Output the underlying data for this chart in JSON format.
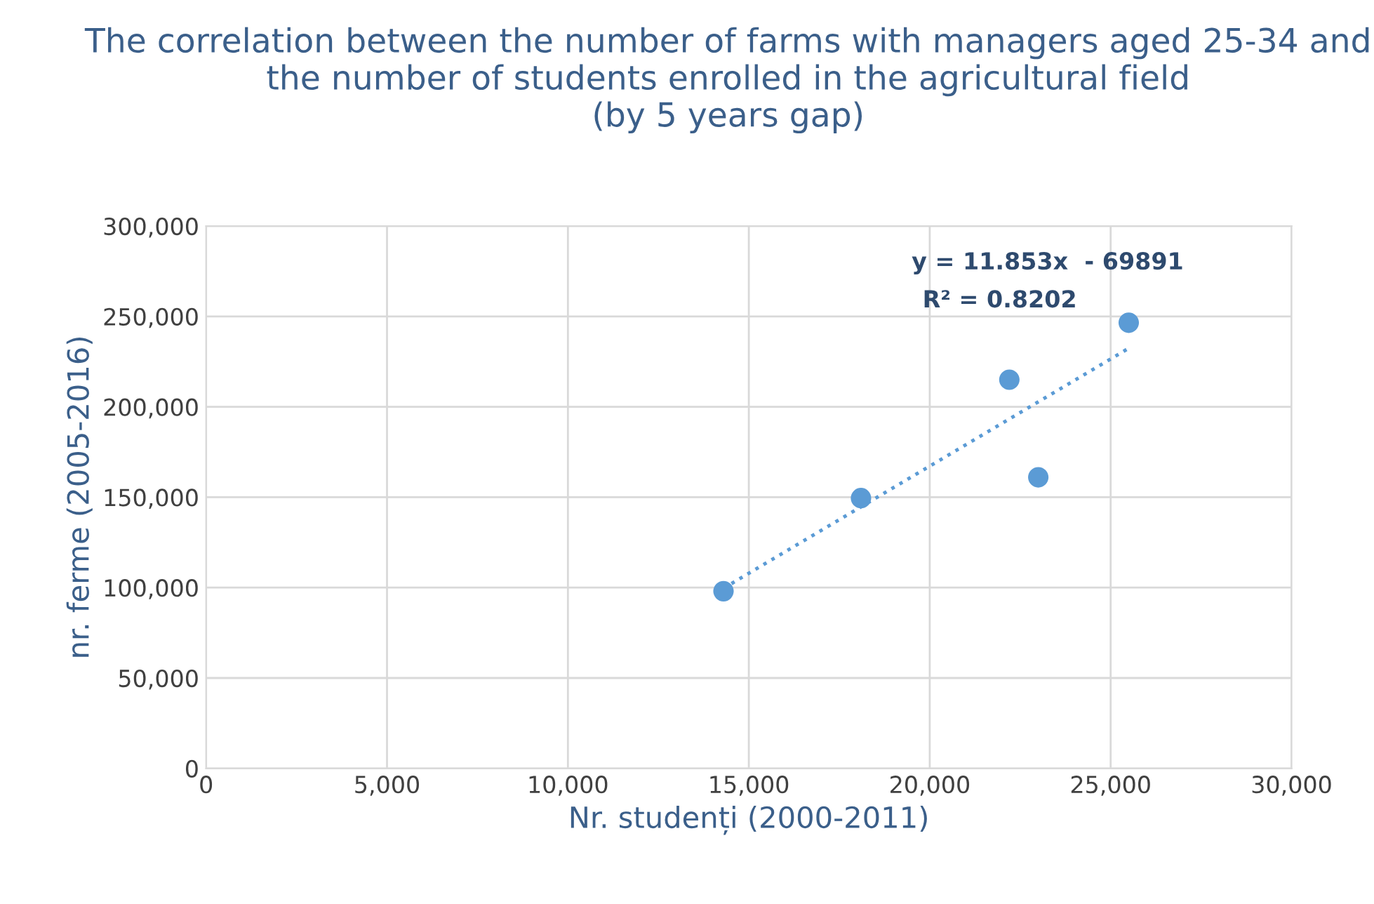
{
  "chart_data": {
    "type": "scatter",
    "title": "The correlation between the number of farms with managers aged 25-34 and the number of students enrolled in the agricultural field\n(by 5 years gap)",
    "xlabel": "Nr. studenți (2000-2011)",
    "ylabel": "nr. ferme (2005-2016)",
    "series": [
      {
        "color": "#5b9bd5",
        "x": [
          14300,
          18100,
          22200,
          23000,
          25500
        ],
        "values": [
          98000,
          149500,
          215000,
          161000,
          246500
        ],
        "marker": "circle"
      },
      {
        "type": "line",
        "color": "#5b9bd5",
        "x": [
          14300,
          25500
        ],
        "values": [
          99600,
          232400
        ],
        "line_style": "dotted",
        "marker": "none"
      }
    ],
    "annotations": [
      "y = 11.853x  - 69891",
      "R² = 0.8202"
    ],
    "xlim": [
      0,
      30000
    ],
    "xticks": [
      {
        "value": 0,
        "label": "0"
      },
      {
        "value": 5000,
        "label": "5,000"
      },
      {
        "value": 10000,
        "label": "10,000"
      },
      {
        "value": 15000,
        "label": "15,000"
      },
      {
        "value": 20000,
        "label": "20,000"
      },
      {
        "value": 25000,
        "label": "25,000"
      },
      {
        "value": 30000,
        "label": "30,000"
      }
    ],
    "ylim": [
      0,
      300000
    ],
    "yticks": [
      {
        "value": 0,
        "label": "0"
      },
      {
        "value": 50000,
        "label": "50,000"
      },
      {
        "value": 100000,
        "label": "100,000"
      },
      {
        "value": 150000,
        "label": "150,000"
      },
      {
        "value": 200000,
        "label": "200,000"
      },
      {
        "value": 250000,
        "label": "250,000"
      },
      {
        "value": 300000,
        "label": "300,000"
      }
    ],
    "grid": true,
    "legend": false
  }
}
